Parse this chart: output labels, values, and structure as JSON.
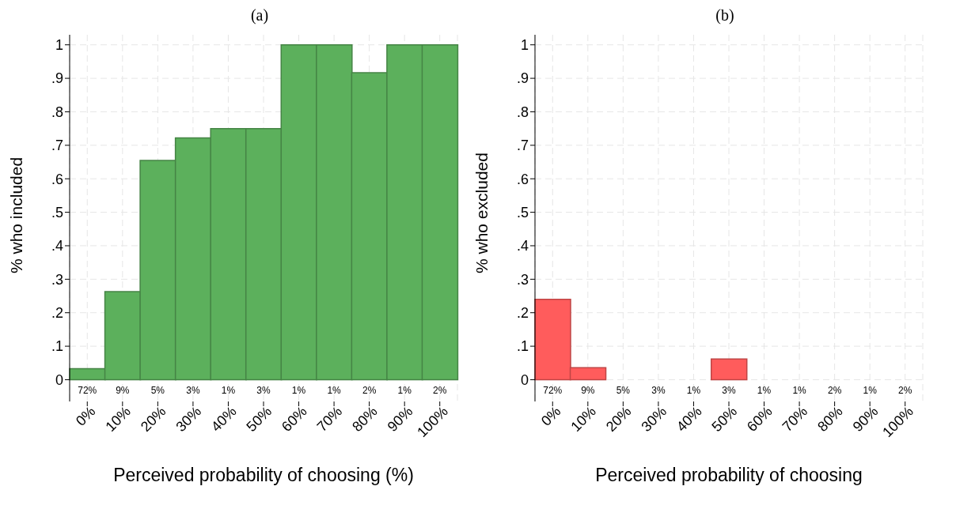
{
  "chart_data": [
    {
      "type": "bar",
      "title": "(a)",
      "xlabel": "Perceived probability of choosing (%)",
      "ylabel": "% who included",
      "categories": [
        "0%",
        "10%",
        "20%",
        "30%",
        "40%",
        "50%",
        "60%",
        "70%",
        "80%",
        "90%",
        "100%"
      ],
      "series": [
        {
          "color": "#5cb05c",
          "values": [
            0.033,
            0.263,
            0.655,
            0.722,
            0.75,
            0.75,
            1,
            1,
            0.917,
            1,
            1
          ]
        }
      ],
      "ylim": [
        -0.065,
        1.03
      ],
      "yticks": [
        {
          "value": 0,
          "label": "0"
        },
        {
          "value": 0.1,
          "label": ".1"
        },
        {
          "value": 0.2,
          "label": ".2"
        },
        {
          "value": 0.3,
          "label": ".3"
        },
        {
          "value": 0.4,
          "label": ".4"
        },
        {
          "value": 0.5,
          "label": ".5"
        },
        {
          "value": 0.6,
          "label": ".6"
        },
        {
          "value": 0.7,
          "label": ".7"
        },
        {
          "value": 0.8,
          "label": ".8"
        },
        {
          "value": 0.9,
          "label": ".9"
        },
        {
          "value": 1,
          "label": "1"
        }
      ],
      "grid": true,
      "annotations": [
        "72%",
        "9%",
        "5%",
        "3%",
        "1%",
        "3%",
        "1%",
        "1%",
        "2%",
        "1%",
        "2%"
      ]
    },
    {
      "type": "bar",
      "title": "(b)",
      "xlabel": "Perceived probability of choosing",
      "ylabel": "% who excluded",
      "categories": [
        "0%",
        "10%",
        "20%",
        "30%",
        "40%",
        "50%",
        "60%",
        "70%",
        "80%",
        "90%",
        "100%"
      ],
      "series": [
        {
          "color": "#ff5c5c",
          "values": [
            0.24,
            0.036,
            0,
            0,
            0,
            0.062,
            0,
            0,
            0,
            0,
            0
          ]
        }
      ],
      "ylim": [
        -0.065,
        1.03
      ],
      "yticks": [
        {
          "value": 0,
          "label": "0"
        },
        {
          "value": 0.1,
          "label": ".1"
        },
        {
          "value": 0.2,
          "label": ".2"
        },
        {
          "value": 0.3,
          "label": ".3"
        },
        {
          "value": 0.4,
          "label": ".4"
        },
        {
          "value": 0.5,
          "label": ".5"
        },
        {
          "value": 0.6,
          "label": ".6"
        },
        {
          "value": 0.7,
          "label": ".7"
        },
        {
          "value": 0.8,
          "label": ".8"
        },
        {
          "value": 0.9,
          "label": ".9"
        },
        {
          "value": 1,
          "label": "1"
        }
      ],
      "grid": true,
      "annotations": [
        "72%",
        "9%",
        "5%",
        "3%",
        "1%",
        "3%",
        "1%",
        "1%",
        "2%",
        "1%",
        "2%"
      ]
    }
  ]
}
